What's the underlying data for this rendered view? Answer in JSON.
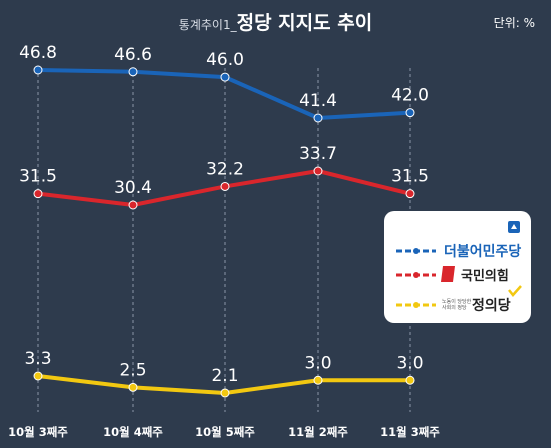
{
  "header": {
    "prefix": "통계추이1_",
    "title": "정당 지지도 추이",
    "unit": "단위: %"
  },
  "chart_data": {
    "type": "line",
    "categories": [
      "10월 3째주",
      "10월 4째주",
      "10월 5째주",
      "11월 2째주",
      "11월 3째주"
    ],
    "series": [
      {
        "name": "더불어민주당",
        "values": [
          46.8,
          46.6,
          46.0,
          41.4,
          42.0
        ],
        "labels": [
          "46.8",
          "46.6",
          "46.0",
          "41.4",
          "42.0"
        ],
        "color": "#1a64b8"
      },
      {
        "name": "국민의힘",
        "values": [
          31.5,
          30.4,
          32.2,
          33.7,
          31.5
        ],
        "labels": [
          "31.5",
          "30.4",
          "32.2",
          "33.7",
          "31.5"
        ],
        "color": "#d9262c"
      },
      {
        "name": "정의당",
        "values": [
          3.3,
          2.5,
          2.1,
          3.0,
          3.0
        ],
        "labels": [
          "3.3",
          "2.5",
          "2.1",
          "3.0",
          "3.0"
        ],
        "color": "#f2c811"
      }
    ],
    "grid": "vertical dashed lines",
    "legend_position": "right"
  },
  "legend": {
    "items": [
      {
        "name": "더불어민주당",
        "color": "#1a64b8",
        "text_color": "#1a64b8"
      },
      {
        "name": "국민의힘",
        "color": "#d9262c",
        "text_color": "#222222",
        "logo": "red-flag-logo"
      },
      {
        "name": "정의당",
        "color": "#f2c811",
        "text_color": "#222222",
        "logo": "yellow-check-logo",
        "small_text": [
          "노동이 당당한",
          "사회의 정당"
        ]
      }
    ]
  }
}
